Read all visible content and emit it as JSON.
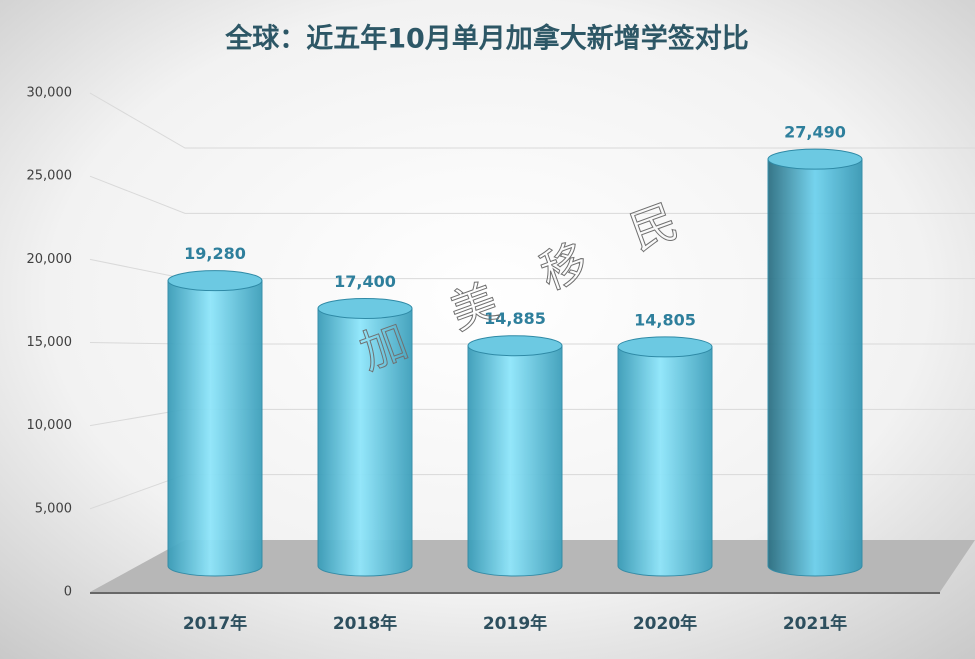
{
  "chart_data": {
    "type": "cylinder-bar",
    "title": "全球：近五年10月单月加拿大新增学签对比",
    "categories": [
      "2017年",
      "2018年",
      "2019年",
      "2020年",
      "2021年"
    ],
    "values": [
      19280,
      17400,
      14885,
      14805,
      27490
    ],
    "value_labels": [
      "19,280",
      "17,400",
      "14,885",
      "14,805",
      "27,490"
    ],
    "color": "#5cc3e0",
    "ylim": [
      0,
      30000
    ],
    "yticks": [
      0,
      {
        "value": 5000,
        "label": "5,000"
      },
      {
        "value": 10000,
        "label": "10,000"
      },
      {
        "value": 15000,
        "label": "15,000"
      },
      {
        "value": 20000,
        "label": "20,000"
      },
      {
        "value": 25000,
        "label": "25,000"
      },
      {
        "value": 30000,
        "label": "30,000"
      }
    ],
    "grid": true,
    "watermark": [
      "加",
      "美",
      "移",
      "民"
    ]
  }
}
